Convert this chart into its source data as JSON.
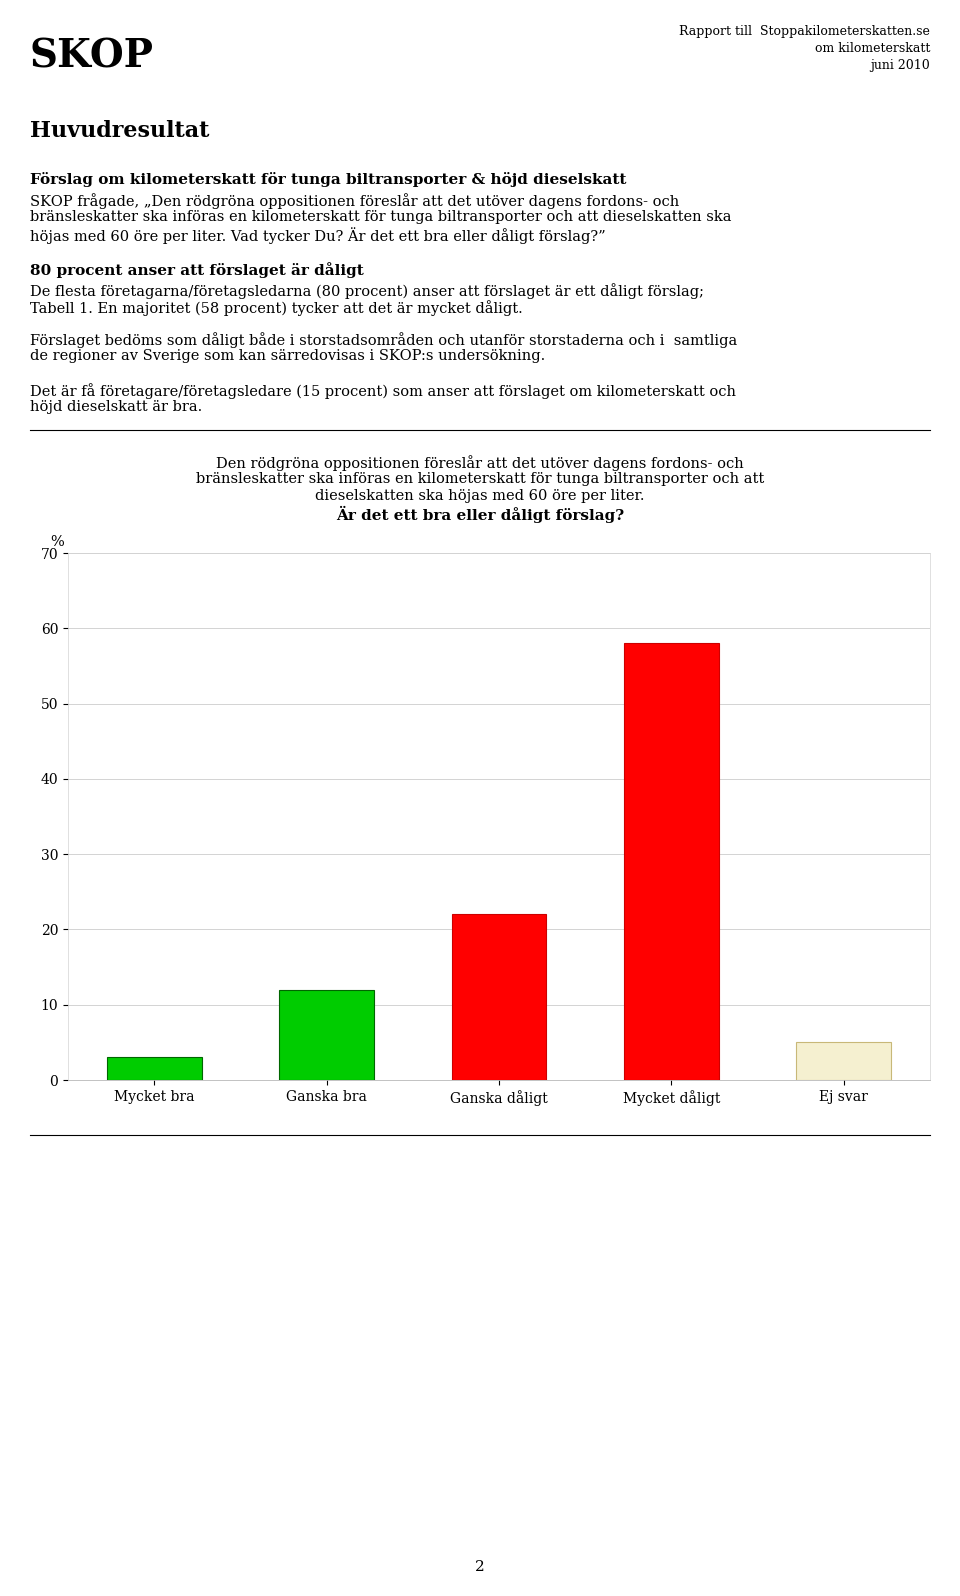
{
  "skop_title": "SKOP",
  "report_line1": "Rapport till  Stoppakilometerskatten.se",
  "report_line2": "om kilometerskatt",
  "report_line3": "juni 2010",
  "section_title": "Huvudresultat",
  "bold_heading": "Förslag om kilometerskatt för tunga biltransporter & höjd dieselskatt",
  "intro_text": "SKOP frågade, „Den rödgröna oppositionen föreslår att det utöver dagens fordons- och bränsleskatter ska införas en kilometerskatt för tunga biltransporter och att dieselskatten ska höjas med 60 öre per liter. Vad tycker Du? Är det ett bra eller dåligt förslag?”",
  "result_heading": "80 procent anser att förslaget är dåligt",
  "result_text1": "De flesta företagarna/företagsledarna (80 procent) anser att förslaget är ett dåligt förslag; Tabell 1. En majoritet (58 procent) tycker att det är mycket dåligt.",
  "result_text2": "Förslaget bedöms som dåligt både i storstadsområden och utanför storstaderna och i  samtliga de regioner av Sverige som kan särredovisas i SKOP:s undersökning.",
  "result_text3": "Det är få företagare/företagsledare (15 procent) som anser att förslaget om kilometerskatt och höjd dieselskatt är bra.",
  "chart_title_line1": "Den rödgröna oppositionen föreslår att det utöver dagens fordons- och",
  "chart_title_line2": "bränsleskatter ska införas en kilometerskatt för tunga biltransporter och att",
  "chart_title_line3": "dieselskatten ska höjas med 60 öre per liter.",
  "chart_title_bold": "Är det ett bra eller dåligt förslag?",
  "ylabel": "%",
  "categories": [
    "Mycket bra",
    "Ganska bra",
    "Ganska dåligt",
    "Mycket dåligt",
    "Ej svar"
  ],
  "values": [
    3,
    12,
    22,
    58,
    5
  ],
  "bar_colors": [
    "#00cc00",
    "#00cc00",
    "#ff0000",
    "#ff0000",
    "#f5f0d0"
  ],
  "bar_edge_colors": [
    "#006600",
    "#006600",
    "#cc0000",
    "#cc0000",
    "#c8b878"
  ],
  "ylim": [
    0,
    70
  ],
  "yticks": [
    0,
    10,
    20,
    30,
    40,
    50,
    60,
    70
  ],
  "page_number": "2",
  "background_color": "#ffffff"
}
